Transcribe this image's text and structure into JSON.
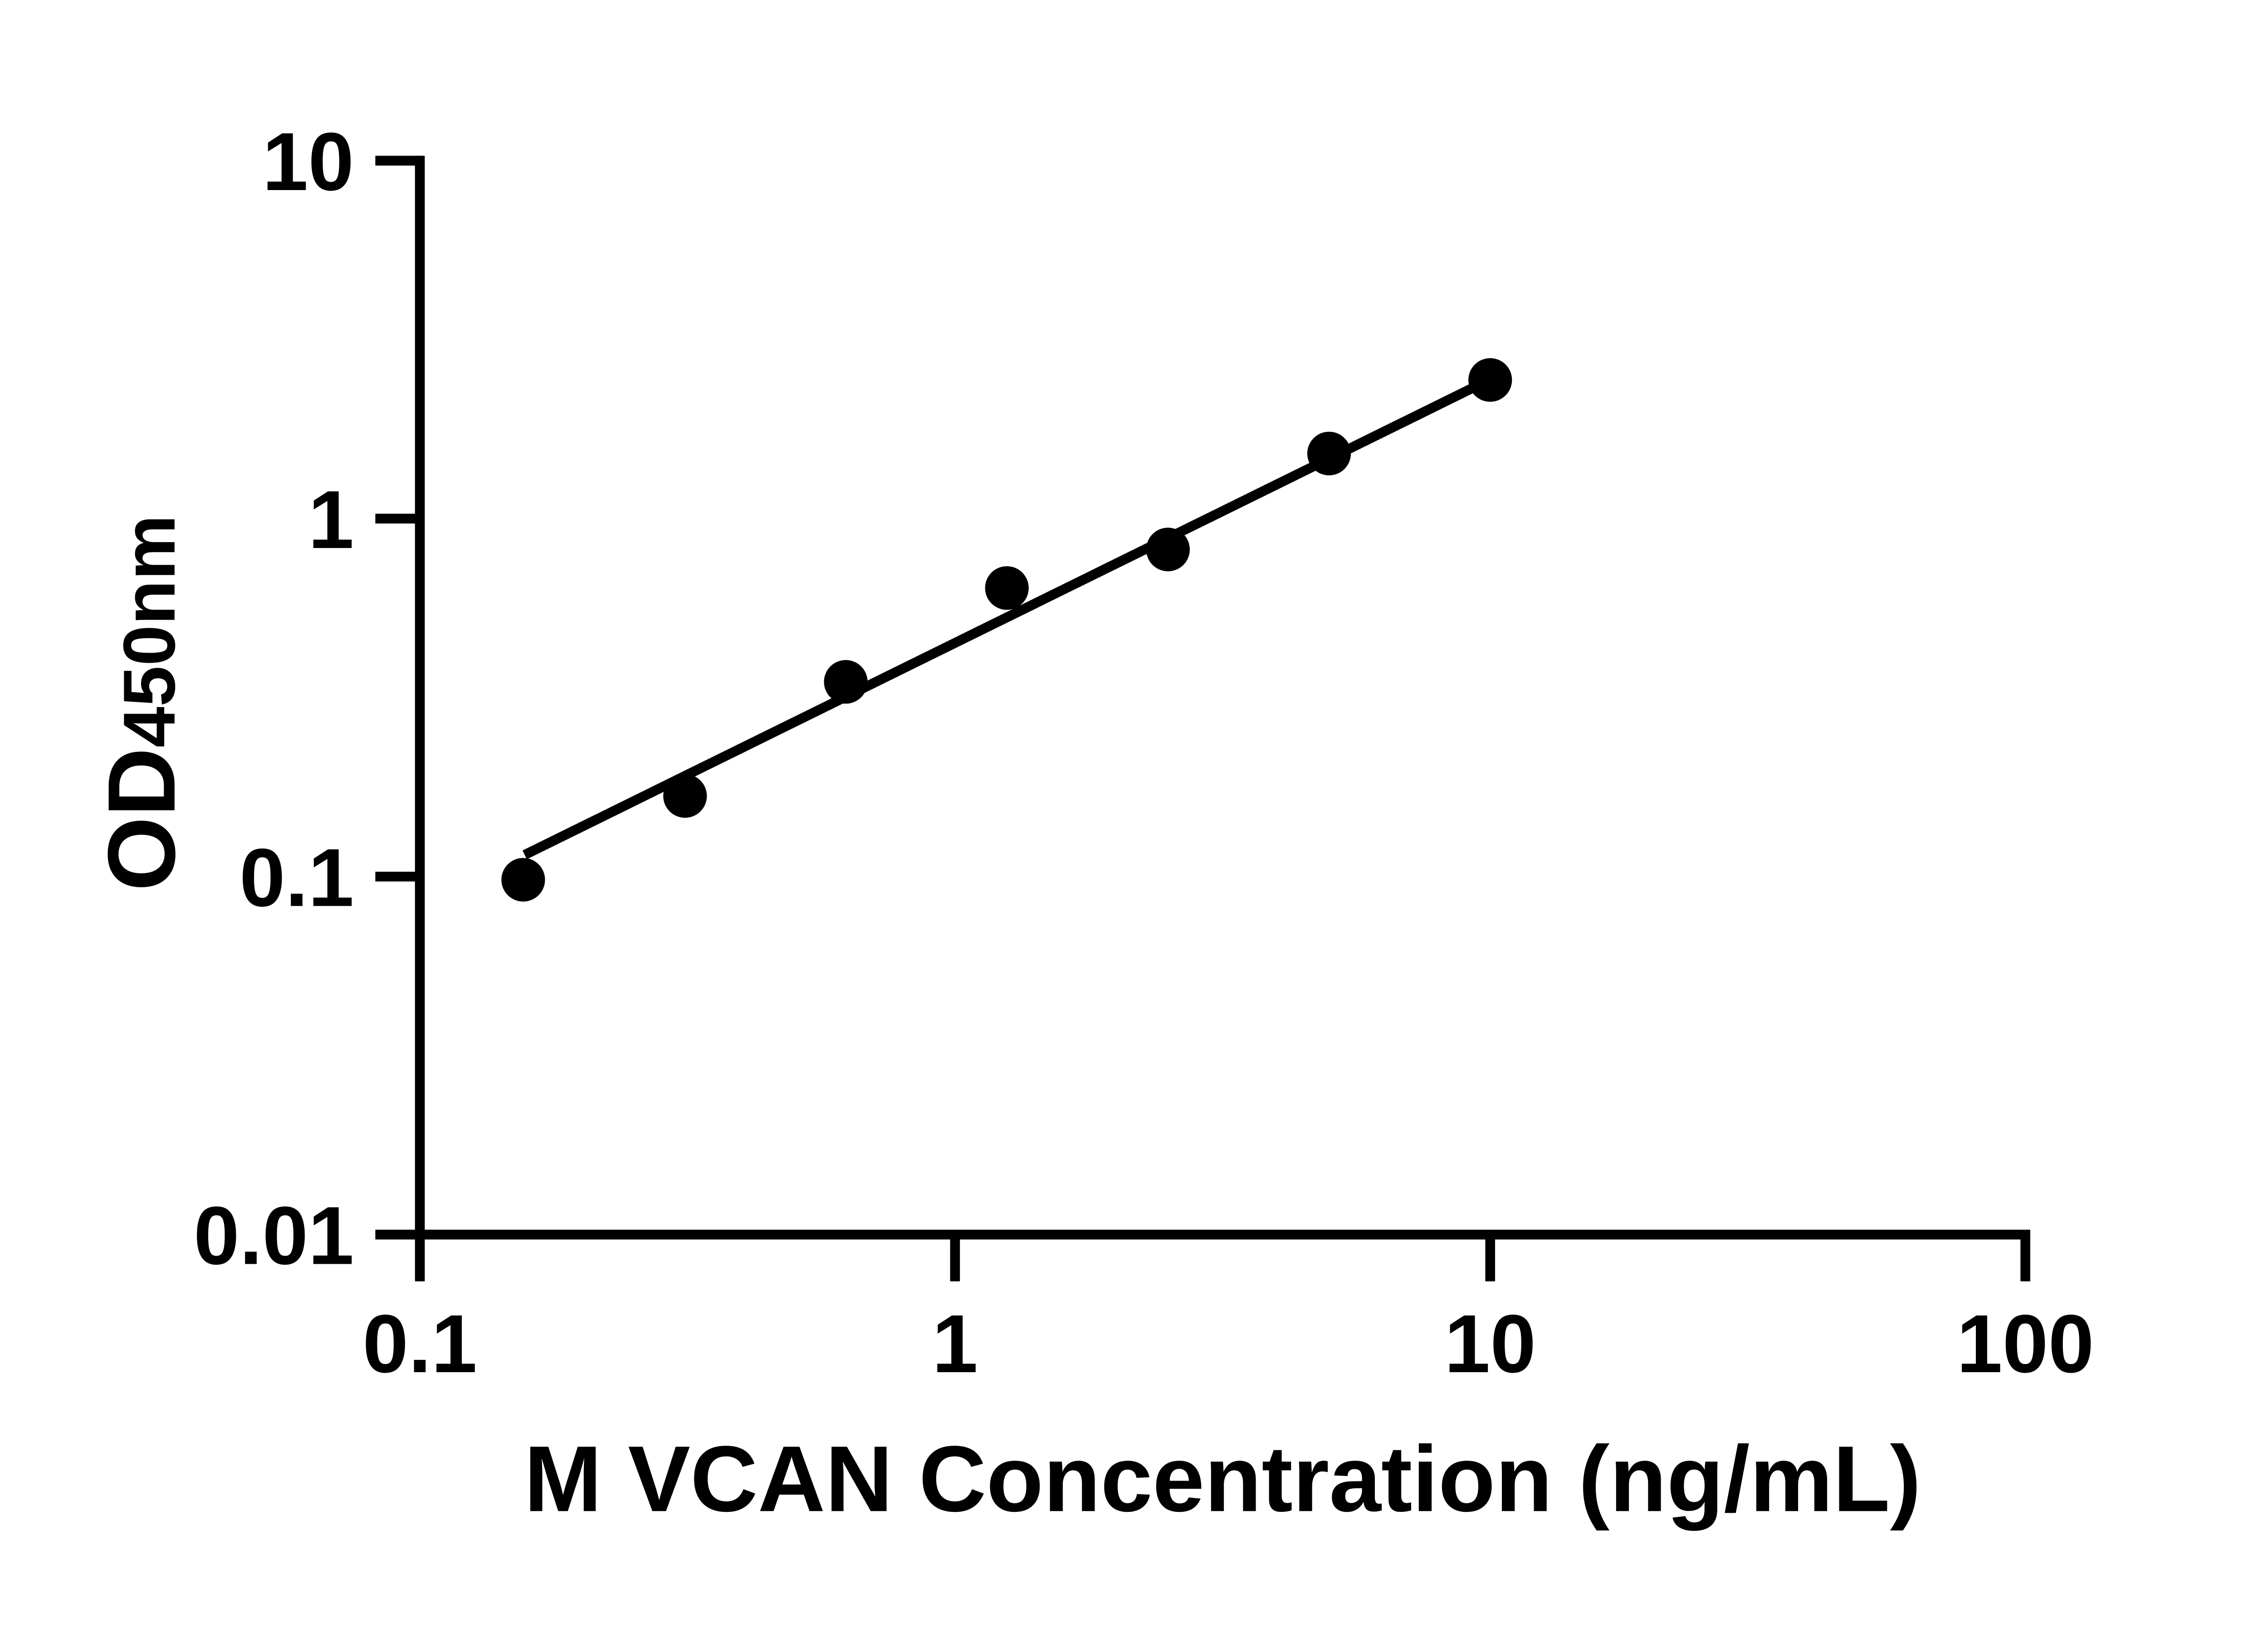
{
  "chart_data": {
    "type": "scatter",
    "title": "",
    "xlabel": "M VCAN Concentration (ng/mL)",
    "ylabel_main": "OD",
    "ylabel_sub": "450nm",
    "x_scale": "log",
    "y_scale": "log",
    "xlim": [
      0.1,
      100
    ],
    "ylim": [
      0.01,
      10
    ],
    "grid": "off",
    "legend": "none",
    "x_ticks": [
      {
        "value": 0.1,
        "label": "0.1"
      },
      {
        "value": 1,
        "label": "1"
      },
      {
        "value": 10,
        "label": "10"
      },
      {
        "value": 100,
        "label": "100"
      }
    ],
    "y_ticks": [
      {
        "value": 0.01,
        "label": "0.01"
      },
      {
        "value": 0.1,
        "label": "0.1"
      },
      {
        "value": 1,
        "label": "1"
      },
      {
        "value": 10,
        "label": "10"
      }
    ],
    "series": [
      {
        "name": "standard-curve",
        "marker": "circle",
        "color": "#000000",
        "points": [
          {
            "x": 0.156,
            "y": 0.098
          },
          {
            "x": 0.313,
            "y": 0.168
          },
          {
            "x": 0.625,
            "y": 0.35
          },
          {
            "x": 1.25,
            "y": 0.64
          },
          {
            "x": 2.5,
            "y": 0.82
          },
          {
            "x": 5,
            "y": 1.52
          },
          {
            "x": 10,
            "y": 2.44
          }
        ]
      }
    ],
    "trendline": {
      "x1": 0.157,
      "y1": 0.115,
      "x2": 10.0,
      "y2": 2.45,
      "color": "#000000"
    },
    "colors": {
      "foreground": "#000000",
      "background": "#ffffff"
    }
  }
}
